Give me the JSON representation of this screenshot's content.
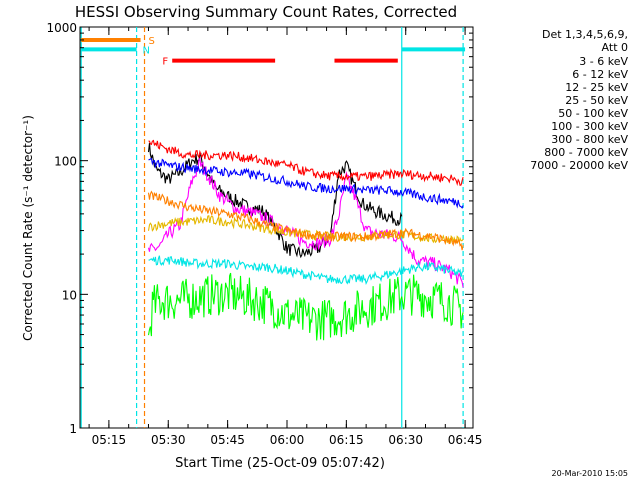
{
  "chart_data": {
    "type": "line",
    "title": "HESSI Observing Summary Count Rates, Corrected",
    "xlabel": "Start Time (25-Oct-09 05:07:42)",
    "ylabel": "Corrected Count Rate (s⁻¹ detector⁻¹)",
    "y_scale": "log",
    "ylim": [
      1,
      1000
    ],
    "xlim": [
      "05:07:42",
      "06:47:00"
    ],
    "x_ticks": [
      "05:15",
      "05:30",
      "05:45",
      "06:00",
      "06:15",
      "06:30",
      "06:45"
    ],
    "y_ticks": [
      "1",
      "10",
      "100",
      "1000"
    ],
    "date_stamp": "20-Mar-2010 15:05",
    "legend_header": [
      "Det 1,3,4,5,6,9,",
      "Att 0"
    ],
    "legend_position": "right",
    "flags": [
      {
        "label": "S",
        "color": "#ff8000",
        "segments": [
          [
            "05:08",
            "05:23"
          ]
        ],
        "level": 800
      },
      {
        "label": "N",
        "color": "#00e5e5",
        "segments": [
          [
            "05:08",
            "05:22"
          ],
          [
            "06:29",
            "06:45"
          ]
        ],
        "level": 680
      },
      {
        "label": "F",
        "color": "#ff0000",
        "segments": [
          [
            "05:31",
            "05:57"
          ],
          [
            "06:12",
            "06:28"
          ]
        ],
        "level": 560
      }
    ],
    "vertical_markers": [
      {
        "time": "05:08",
        "color": "#00e5e5",
        "style": "solid"
      },
      {
        "time": "05:22",
        "color": "#00e5e5",
        "style": "dashed"
      },
      {
        "time": "05:24",
        "color": "#ff8000",
        "style": "dashed"
      },
      {
        "time": "06:29",
        "color": "#00e5e5",
        "style": "solid"
      },
      {
        "time": "06:44.5",
        "color": "#00e5e5",
        "style": "dashed"
      }
    ],
    "series": [
      {
        "name": "3 - 6 keV",
        "color": "#000000",
        "x": [
          "05:25",
          "05:27",
          "05:30",
          "05:33",
          "05:36",
          "05:38",
          "05:40",
          "05:42",
          "05:46",
          "05:50",
          "05:54",
          "05:57",
          "06:00",
          "06:04",
          "06:08",
          "06:11",
          "06:13",
          "06:15",
          "06:17",
          "06:19",
          "06:22",
          "06:26",
          "06:29"
        ],
        "values": [
          130,
          85,
          72,
          82,
          100,
          105,
          80,
          62,
          52,
          45,
          42,
          32,
          22,
          20,
          22,
          28,
          80,
          92,
          65,
          48,
          42,
          38,
          36
        ]
      },
      {
        "name": "6 - 12 keV",
        "color": "#ff00ff",
        "x": [
          "05:25",
          "05:28",
          "05:30",
          "05:33",
          "05:36",
          "05:38",
          "05:40",
          "05:43",
          "05:47",
          "05:52",
          "05:56",
          "06:00",
          "06:04",
          "06:08",
          "06:11",
          "06:13",
          "06:15",
          "06:17",
          "06:20",
          "06:24",
          "06:28",
          "06:29",
          "06:33",
          "06:37",
          "06:41",
          "06:44.5"
        ],
        "values": [
          21,
          23,
          28,
          33,
          70,
          96,
          78,
          55,
          44,
          40,
          35,
          30,
          25,
          24,
          26,
          38,
          75,
          55,
          30,
          28,
          27,
          26,
          18,
          17,
          15,
          12
        ]
      },
      {
        "name": "12 - 25 keV",
        "color": "#00ff00",
        "x": [
          "05:25",
          "05:26",
          "05:28",
          "05:33",
          "05:38",
          "05:42",
          "05:46",
          "05:52",
          "05:57",
          "06:00",
          "06:05",
          "06:10",
          "06:15",
          "06:20",
          "06:25",
          "06:29",
          "06:32",
          "06:36",
          "06:40",
          "06:44.5"
        ],
        "values": [
          4.5,
          8,
          9,
          9,
          9.5,
          10,
          10,
          9,
          8,
          7,
          6.5,
          6.5,
          7,
          8,
          9,
          10,
          10,
          9.5,
          9,
          7.5
        ]
      },
      {
        "name": "25 - 50 keV",
        "color": "#00e5e5",
        "x": [
          "05:25",
          "05:28",
          "05:32",
          "05:36",
          "05:40",
          "05:45",
          "05:50",
          "05:55",
          "06:00",
          "06:05",
          "06:10",
          "06:15",
          "06:20",
          "06:25",
          "06:29",
          "06:33",
          "06:37",
          "06:41",
          "06:44.5"
        ],
        "values": [
          18,
          18,
          18,
          17,
          17,
          17,
          16,
          16,
          15,
          14,
          13,
          13,
          13,
          14,
          15,
          16,
          16,
          15,
          14
        ]
      },
      {
        "name": "50 - 100 keV",
        "color": "#e5b800",
        "x": [
          "05:25",
          "05:30",
          "05:35",
          "05:40",
          "05:45",
          "05:50",
          "05:55",
          "06:00",
          "06:05",
          "06:10",
          "06:15",
          "06:20",
          "06:25",
          "06:29",
          "06:33",
          "06:37",
          "06:41",
          "06:44.5"
        ],
        "values": [
          32,
          34,
          35,
          36,
          35,
          33,
          31,
          29,
          28,
          27,
          27,
          27,
          28,
          28,
          27,
          26,
          26,
          25
        ]
      },
      {
        "name": "100 - 300 keV",
        "color": "#ff8000",
        "x": [
          "05:25",
          "05:30",
          "05:35",
          "05:40",
          "05:45",
          "05:50",
          "05:55",
          "06:00",
          "06:05",
          "06:10",
          "06:15",
          "06:20",
          "06:25",
          "06:29",
          "06:33",
          "06:37",
          "06:41",
          "06:44.5"
        ],
        "values": [
          55,
          50,
          45,
          42,
          40,
          37,
          33,
          30,
          28,
          27,
          27,
          27,
          28,
          29,
          28,
          27,
          25,
          23
        ]
      },
      {
        "name": "300 - 800 keV",
        "color": "#0000ff",
        "x": [
          "05:25",
          "05:30",
          "05:35",
          "05:40",
          "05:45",
          "05:50",
          "05:55",
          "06:00",
          "06:05",
          "06:10",
          "06:15",
          "06:20",
          "06:25",
          "06:29",
          "06:33",
          "06:37",
          "06:41",
          "06:44.5"
        ],
        "values": [
          100,
          92,
          88,
          85,
          82,
          80,
          75,
          70,
          64,
          62,
          62,
          60,
          60,
          58,
          55,
          52,
          50,
          48
        ]
      },
      {
        "name": "800 - 7000 keV",
        "color": "#ff0000",
        "x": [
          "05:25",
          "05:30",
          "05:35",
          "05:40",
          "05:45",
          "05:50",
          "05:55",
          "06:00",
          "06:05",
          "06:10",
          "06:15",
          "06:20",
          "06:25",
          "06:29",
          "06:33",
          "06:37",
          "06:41",
          "06:44.5"
        ],
        "values": [
          140,
          122,
          110,
          110,
          110,
          105,
          98,
          92,
          82,
          77,
          76,
          76,
          78,
          80,
          78,
          76,
          74,
          70
        ]
      },
      {
        "name": "7000 - 20000 keV",
        "color": "#9a6a00",
        "x": [],
        "values": []
      }
    ]
  }
}
